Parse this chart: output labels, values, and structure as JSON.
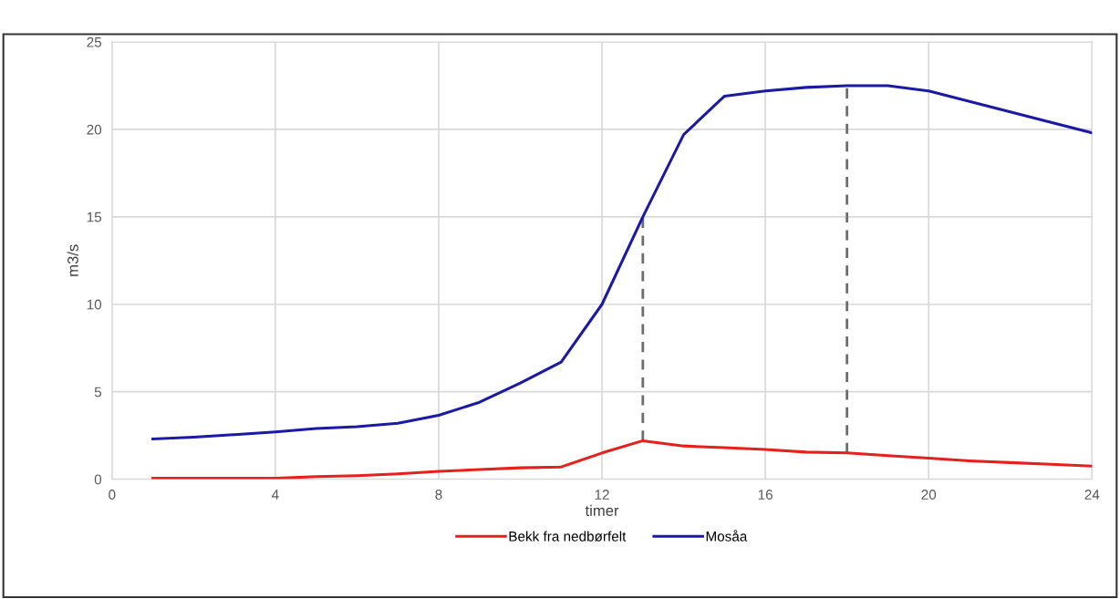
{
  "chart_data": {
    "type": "line",
    "xlabel": "timer",
    "ylabel": "m3/s",
    "x": [
      1,
      2,
      3,
      4,
      5,
      6,
      7,
      8,
      9,
      10,
      11,
      12,
      13,
      14,
      15,
      16,
      17,
      18,
      19,
      20,
      21,
      22,
      23,
      24
    ],
    "series": [
      {
        "name": "Bekk fra nedbørfelt",
        "color": "#e8201c",
        "values": [
          0.05,
          0.05,
          0.05,
          0.05,
          0.15,
          0.2,
          0.3,
          0.45,
          0.55,
          0.65,
          0.7,
          1.5,
          2.2,
          1.9,
          1.8,
          1.7,
          1.55,
          1.5,
          1.35,
          1.2,
          1.05,
          0.95,
          0.85,
          0.75
        ]
      },
      {
        "name": "Mosåa",
        "color": "#1a1aa6",
        "values": [
          2.3,
          2.4,
          2.55,
          2.7,
          2.9,
          3.0,
          3.2,
          3.65,
          4.4,
          5.5,
          6.7,
          10.0,
          15.0,
          19.7,
          21.9,
          22.2,
          22.4,
          22.5,
          22.5,
          22.2,
          21.6,
          21.0,
          20.4,
          19.8
        ]
      }
    ],
    "xlim": [
      0,
      24
    ],
    "xticks": [
      0,
      4,
      8,
      12,
      16,
      20,
      24
    ],
    "ylim": [
      0,
      25
    ],
    "yticks": [
      0,
      5,
      10,
      15,
      20,
      25
    ],
    "ref_lines": [
      {
        "axis": "x",
        "value": 13,
        "color": "#6d6d6d",
        "line_style": "dashed"
      },
      {
        "axis": "x",
        "value": 18,
        "color": "#6d6d6d",
        "line_style": "dashed"
      }
    ],
    "grid": true,
    "legend": "bottom",
    "marker": "none",
    "line_style": "solid"
  }
}
